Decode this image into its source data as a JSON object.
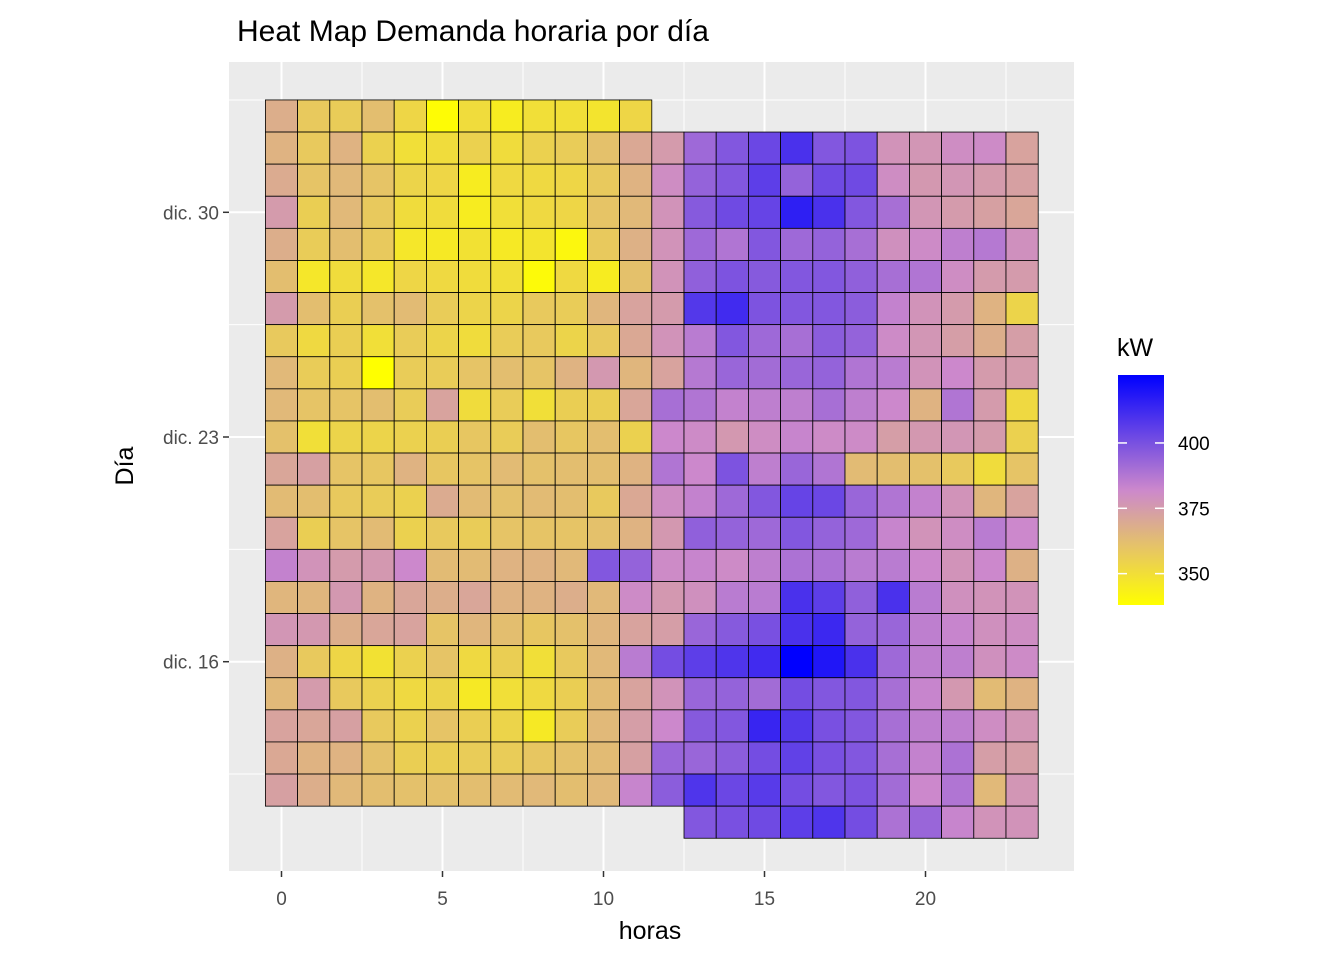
{
  "chart_data": {
    "type": "heatmap",
    "title": "Heat Map Demanda horaria por día",
    "xlabel": "horas",
    "ylabel": "Día",
    "x_ticks": [
      0,
      5,
      10,
      15,
      20
    ],
    "y_ticks": [
      {
        "label": "dic. 16",
        "day": 16
      },
      {
        "label": "dic. 23",
        "day": 23
      },
      {
        "label": "dic. 30",
        "day": 30
      }
    ],
    "x": [
      0,
      1,
      2,
      3,
      4,
      5,
      6,
      7,
      8,
      9,
      10,
      11,
      12,
      13,
      14,
      15,
      16,
      17,
      18,
      19,
      20,
      21,
      22,
      23
    ],
    "xlim": [
      -1.5,
      24.5
    ],
    "ylim": [
      9.6,
      34.4
    ],
    "series": [],
    "cells": [
      {
        "day": 33,
        "values": [
          368,
          358,
          357,
          362,
          353,
          339,
          351,
          345,
          350,
          350,
          348,
          353,
          null,
          null,
          null,
          null,
          null,
          null,
          null,
          null,
          null,
          null,
          null,
          null
        ]
      },
      {
        "day": 32,
        "values": [
          366,
          358,
          366,
          355,
          350,
          351,
          355,
          351,
          355,
          357,
          361,
          370,
          375,
          392,
          398,
          403,
          410,
          398,
          399,
          378,
          377,
          380,
          381,
          372
        ]
      },
      {
        "day": 31,
        "values": [
          369,
          360,
          364,
          360,
          354,
          353,
          345,
          352,
          352,
          353,
          358,
          366,
          380,
          394,
          398,
          406,
          394,
          402,
          402,
          380,
          376,
          377,
          375,
          373
        ]
      },
      {
        "day": 30,
        "values": [
          375,
          356,
          364,
          358,
          351,
          351,
          345,
          350,
          352,
          353,
          360,
          364,
          378,
          397,
          402,
          404,
          416,
          410,
          398,
          390,
          377,
          375,
          373,
          371
        ]
      },
      {
        "day": 29,
        "values": [
          368,
          357,
          362,
          358,
          347,
          346,
          349,
          346,
          348,
          341,
          358,
          367,
          378,
          392,
          388,
          398,
          392,
          394,
          390,
          379,
          381,
          385,
          387,
          379
        ]
      },
      {
        "day": 28,
        "values": [
          362,
          347,
          351,
          347,
          353,
          352,
          351,
          350,
          340,
          352,
          345,
          361,
          378,
          395,
          399,
          397,
          398,
          398,
          395,
          390,
          388,
          380,
          375,
          375
        ]
      },
      {
        "day": 27,
        "values": [
          375,
          362,
          356,
          361,
          363,
          357,
          354,
          354,
          358,
          357,
          365,
          372,
          375,
          408,
          412,
          399,
          398,
          398,
          396,
          384,
          378,
          375,
          366,
          354
        ]
      },
      {
        "day": 26,
        "values": [
          358,
          352,
          356,
          350,
          357,
          354,
          351,
          357,
          358,
          354,
          358,
          370,
          378,
          386,
          398,
          392,
          390,
          396,
          394,
          381,
          377,
          374,
          368,
          374
        ]
      },
      {
        "day": 25,
        "values": [
          364,
          357,
          356,
          338,
          357,
          357,
          360,
          362,
          360,
          366,
          376,
          365,
          372,
          387,
          393,
          391,
          393,
          394,
          388,
          386,
          378,
          382,
          375,
          375
        ]
      },
      {
        "day": 24,
        "values": [
          364,
          360,
          360,
          362,
          357,
          372,
          351,
          357,
          350,
          356,
          356,
          371,
          390,
          388,
          384,
          385,
          385,
          390,
          385,
          382,
          366,
          388,
          375,
          352
        ]
      },
      {
        "day": 23,
        "values": [
          361,
          350,
          354,
          354,
          355,
          356,
          359,
          357,
          362,
          359,
          362,
          355,
          382,
          381,
          376,
          380,
          383,
          381,
          381,
          374,
          376,
          377,
          375,
          355
        ]
      },
      {
        "day": 22,
        "values": [
          371,
          373,
          360,
          359,
          366,
          359,
          360,
          363,
          361,
          362,
          362,
          366,
          388,
          382,
          399,
          385,
          393,
          388,
          363,
          362,
          361,
          358,
          351,
          360
        ]
      },
      {
        "day": 21,
        "values": [
          363,
          362,
          358,
          357,
          355,
          369,
          363,
          361,
          363,
          362,
          358,
          370,
          380,
          384,
          392,
          398,
          404,
          403,
          393,
          388,
          384,
          378,
          365,
          372
        ]
      },
      {
        "day": 20,
        "values": [
          372,
          356,
          360,
          363,
          355,
          358,
          357,
          360,
          360,
          360,
          361,
          366,
          376,
          395,
          394,
          392,
          398,
          394,
          392,
          383,
          378,
          380,
          386,
          382
        ]
      },
      {
        "day": 19,
        "values": [
          384,
          378,
          375,
          376,
          382,
          363,
          363,
          366,
          366,
          364,
          398,
          394,
          381,
          383,
          381,
          385,
          389,
          389,
          386,
          386,
          382,
          378,
          382,
          367
        ]
      },
      {
        "day": 18,
        "values": [
          365,
          365,
          376,
          366,
          371,
          368,
          371,
          366,
          366,
          368,
          364,
          381,
          376,
          379,
          386,
          386,
          410,
          406,
          395,
          410,
          386,
          379,
          378,
          378
        ]
      },
      {
        "day": 17,
        "values": [
          377,
          376,
          368,
          371,
          372,
          360,
          365,
          362,
          359,
          361,
          365,
          372,
          374,
          393,
          397,
          400,
          410,
          413,
          394,
          393,
          385,
          383,
          379,
          380
        ]
      },
      {
        "day": 16,
        "values": [
          367,
          358,
          353,
          349,
          355,
          360,
          352,
          356,
          350,
          358,
          364,
          386,
          401,
          406,
          409,
          412,
          426,
          419,
          410,
          392,
          385,
          385,
          379,
          381
        ]
      },
      {
        "day": 15,
        "values": [
          364,
          375,
          358,
          355,
          352,
          354,
          346,
          350,
          352,
          356,
          363,
          372,
          378,
          393,
          394,
          391,
          401,
          398,
          398,
          390,
          383,
          376,
          363,
          366
        ]
      },
      {
        "day": 14,
        "values": [
          372,
          371,
          373,
          358,
          355,
          360,
          356,
          354,
          346,
          357,
          364,
          374,
          382,
          397,
          398,
          414,
          408,
          400,
          398,
          390,
          385,
          385,
          380,
          377
        ]
      },
      {
        "day": 13,
        "values": [
          370,
          366,
          366,
          361,
          356,
          356,
          357,
          357,
          359,
          361,
          363,
          373,
          393,
          393,
          396,
          401,
          405,
          400,
          398,
          390,
          384,
          389,
          374,
          374
        ]
      },
      {
        "day": 12,
        "values": [
          373,
          368,
          364,
          362,
          361,
          361,
          362,
          363,
          364,
          362,
          364,
          383,
          396,
          409,
          403,
          407,
          401,
          398,
          399,
          391,
          382,
          388,
          364,
          377
        ]
      },
      {
        "day": 11,
        "values": [
          null,
          null,
          null,
          null,
          null,
          null,
          null,
          null,
          null,
          null,
          null,
          null,
          null,
          398,
          400,
          402,
          406,
          409,
          401,
          389,
          393,
          383,
          378,
          378
        ]
      }
    ],
    "legend": {
      "title": "kW",
      "min": 338,
      "max": 426,
      "ticks": [
        350,
        375,
        400
      ],
      "colors": [
        "#FFFF00",
        "#CC88CC",
        "#0000FF"
      ],
      "position": "right"
    },
    "grid": true,
    "panel_color": "#EBEBEB",
    "cell_border_color": "#000000"
  }
}
